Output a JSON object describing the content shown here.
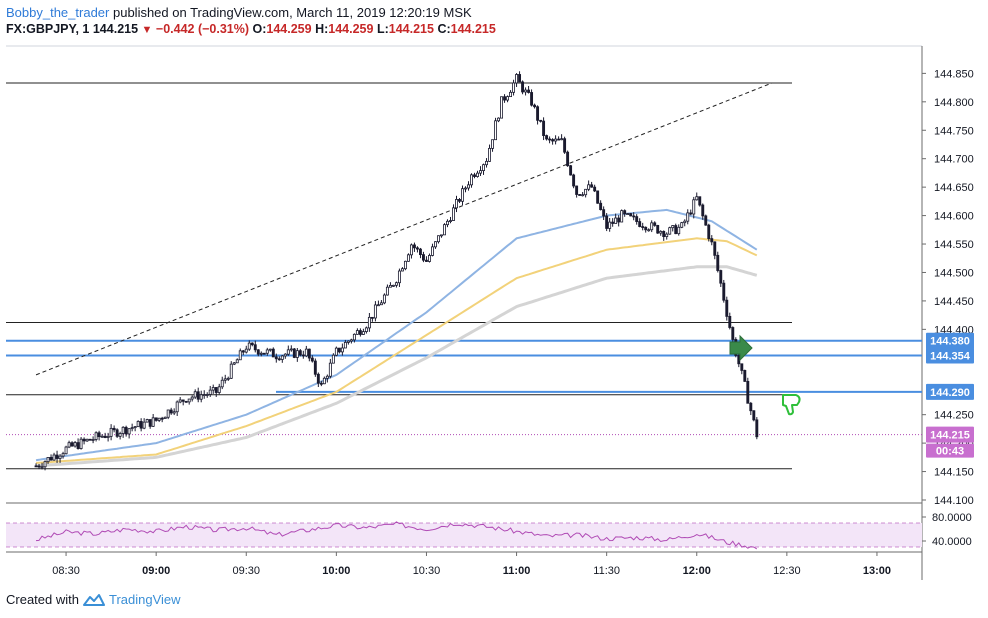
{
  "header": {
    "author": "Bobby_the_trader",
    "published_text": "published on TradingView.com, March 11, 2019 12:20:19 MSK"
  },
  "ohlc": {
    "symbol": "FX:GBPJPY, 1",
    "last": "144.215",
    "change": "−0.442 (−0.31%)",
    "o_label": "O:",
    "o": "144.259",
    "h_label": "H:",
    "h": "144.259",
    "l_label": "L:",
    "l": "144.215",
    "c_label": "C:",
    "c": "144.215"
  },
  "footer": {
    "created_with": "Created with",
    "brand": "TradingView"
  },
  "colors": {
    "up": "#ffffff",
    "down": "#1a1a2e",
    "ma_fast": "#8fb4e3",
    "ma_mid": "#f2d27a",
    "ma_slow": "#d4d4d4",
    "level_blue": "#4a8ee0",
    "price_line": "#b04bb5",
    "rsi": "#b04bb5",
    "rsi_band": "#f3e5f8",
    "arrow_green": "#3a8a4a",
    "thumb_green": "#2fbf3a"
  },
  "chart_data": {
    "type": "candlestick",
    "x_ticks": [
      "08:30",
      "09:00",
      "09:30",
      "10:00",
      "10:30",
      "11:00",
      "11:30",
      "12:00",
      "12:30",
      "13:00"
    ],
    "x_major_ticks": [
      "09:00",
      "10:00",
      "11:00",
      "12:00",
      "13:00"
    ],
    "y_ticks": [
      "144.850",
      "144.800",
      "144.750",
      "144.700",
      "144.650",
      "144.600",
      "144.550",
      "144.500",
      "144.450",
      "144.400",
      "144.250",
      "144.200",
      "144.150",
      "144.100"
    ],
    "ylim": [
      144.1,
      144.87
    ],
    "price_labels": [
      {
        "value": "144.380",
        "price": 144.38
      },
      {
        "value": "144.354",
        "price": 144.354
      },
      {
        "value": "144.290",
        "price": 144.29
      },
      {
        "value": "144.215",
        "price": 144.215
      }
    ],
    "countdown": "00:43",
    "horizontal_levels": [
      144.833,
      144.412,
      144.285,
      144.155
    ],
    "blue_levels": [
      144.38,
      144.354,
      144.29
    ],
    "trendline": {
      "from": {
        "time": "08:20",
        "price": 144.32
      },
      "to": {
        "time": "12:25",
        "price": 144.833
      }
    },
    "close_path": [
      [
        "08:20",
        144.16
      ],
      [
        "08:30",
        144.19
      ],
      [
        "08:40",
        144.21
      ],
      [
        "08:50",
        144.225
      ],
      [
        "09:00",
        144.24
      ],
      [
        "09:10",
        144.28
      ],
      [
        "09:20",
        144.29
      ],
      [
        "09:25",
        144.33
      ],
      [
        "09:30",
        144.37
      ],
      [
        "09:40",
        144.355
      ],
      [
        "09:50",
        144.36
      ],
      [
        "09:55",
        144.3
      ],
      [
        "10:00",
        144.36
      ],
      [
        "10:10",
        144.41
      ],
      [
        "10:20",
        144.49
      ],
      [
        "10:25",
        144.55
      ],
      [
        "10:30",
        144.52
      ],
      [
        "10:40",
        144.62
      ],
      [
        "10:45",
        144.67
      ],
      [
        "10:50",
        144.7
      ],
      [
        "10:55",
        144.8
      ],
      [
        "11:00",
        144.84
      ],
      [
        "11:05",
        144.8
      ],
      [
        "11:10",
        144.73
      ],
      [
        "11:15",
        144.73
      ],
      [
        "11:20",
        144.64
      ],
      [
        "11:25",
        144.65
      ],
      [
        "11:30",
        144.58
      ],
      [
        "11:35",
        144.6
      ],
      [
        "11:40",
        144.59
      ],
      [
        "11:45",
        144.58
      ],
      [
        "11:50",
        144.57
      ],
      [
        "11:55",
        144.58
      ],
      [
        "12:00",
        144.63
      ],
      [
        "12:05",
        144.55
      ],
      [
        "12:08",
        144.48
      ],
      [
        "12:12",
        144.38
      ],
      [
        "12:16",
        144.3
      ],
      [
        "12:20",
        144.215
      ]
    ],
    "ma_fast": [
      [
        "08:20",
        144.17
      ],
      [
        "09:00",
        144.2
      ],
      [
        "09:30",
        144.25
      ],
      [
        "10:00",
        144.32
      ],
      [
        "10:30",
        144.43
      ],
      [
        "11:00",
        144.56
      ],
      [
        "11:30",
        144.6
      ],
      [
        "11:50",
        144.61
      ],
      [
        "12:05",
        144.59
      ],
      [
        "12:20",
        144.54
      ]
    ],
    "ma_mid": [
      [
        "08:20",
        144.165
      ],
      [
        "09:00",
        144.18
      ],
      [
        "09:30",
        144.23
      ],
      [
        "10:00",
        144.29
      ],
      [
        "10:30",
        144.39
      ],
      [
        "11:00",
        144.49
      ],
      [
        "11:30",
        144.54
      ],
      [
        "12:00",
        144.56
      ],
      [
        "12:10",
        144.555
      ],
      [
        "12:20",
        144.53
      ]
    ],
    "ma_slow": [
      [
        "08:20",
        144.16
      ],
      [
        "09:00",
        144.175
      ],
      [
        "09:30",
        144.21
      ],
      [
        "10:00",
        144.27
      ],
      [
        "10:30",
        144.35
      ],
      [
        "11:00",
        144.44
      ],
      [
        "11:30",
        144.49
      ],
      [
        "12:00",
        144.51
      ],
      [
        "12:10",
        144.51
      ],
      [
        "12:20",
        144.495
      ]
    ],
    "rsi": {
      "y_ticks": [
        "80.0000",
        "40.0000"
      ],
      "ylim": [
        25,
        95
      ],
      "band": [
        30,
        70
      ],
      "path": [
        [
          "08:20",
          42
        ],
        [
          "08:30",
          55
        ],
        [
          "08:40",
          52
        ],
        [
          "08:50",
          60
        ],
        [
          "09:00",
          56
        ],
        [
          "09:10",
          64
        ],
        [
          "09:20",
          58
        ],
        [
          "09:30",
          62
        ],
        [
          "09:40",
          50
        ],
        [
          "09:50",
          58
        ],
        [
          "10:00",
          66
        ],
        [
          "10:10",
          62
        ],
        [
          "10:20",
          68
        ],
        [
          "10:30",
          60
        ],
        [
          "10:40",
          70
        ],
        [
          "10:50",
          64
        ],
        [
          "11:00",
          56
        ],
        [
          "11:10",
          48
        ],
        [
          "11:20",
          50
        ],
        [
          "11:30",
          44
        ],
        [
          "11:40",
          46
        ],
        [
          "11:50",
          42
        ],
        [
          "12:00",
          52
        ],
        [
          "12:05",
          46
        ],
        [
          "12:10",
          38
        ],
        [
          "12:15",
          34
        ],
        [
          "12:20",
          28
        ]
      ]
    }
  }
}
